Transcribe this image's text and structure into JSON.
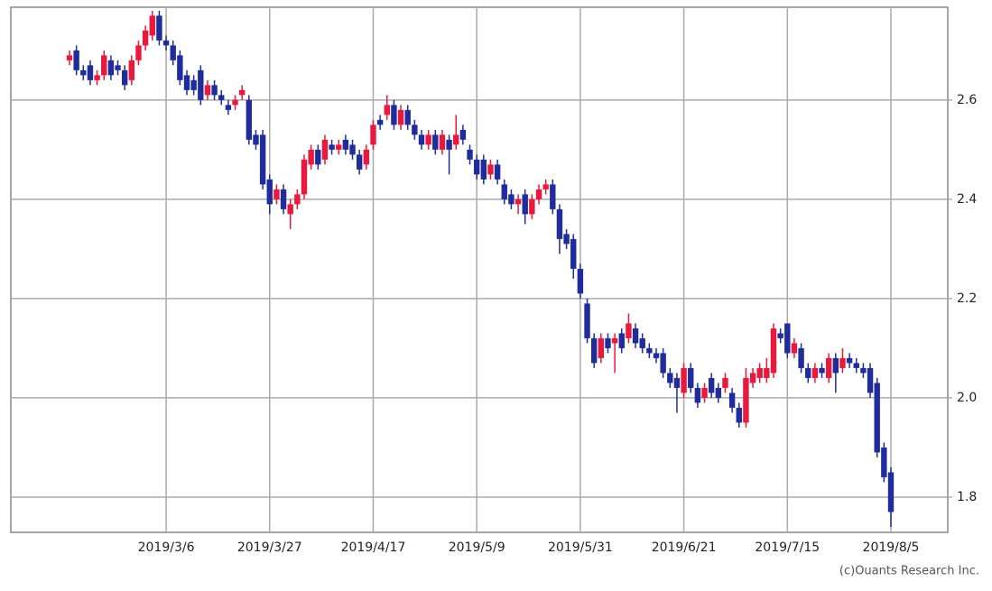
{
  "chart_data": {
    "type": "candlestick",
    "categories": [
      null,
      null,
      null,
      null,
      null,
      null,
      null,
      null,
      null,
      null,
      null,
      null,
      null,
      null,
      "2019/3/6",
      null,
      null,
      null,
      null,
      null,
      null,
      null,
      null,
      null,
      null,
      null,
      null,
      null,
      null,
      "2019/3/27",
      null,
      null,
      null,
      null,
      null,
      null,
      null,
      null,
      null,
      null,
      null,
      null,
      null,
      null,
      "2019/4/17",
      null,
      null,
      null,
      null,
      null,
      null,
      null,
      null,
      null,
      null,
      null,
      null,
      null,
      null,
      "2019/5/9",
      null,
      null,
      null,
      null,
      null,
      null,
      null,
      null,
      null,
      null,
      null,
      null,
      null,
      null,
      "2019/5/31",
      null,
      null,
      null,
      null,
      null,
      null,
      null,
      null,
      null,
      null,
      null,
      null,
      null,
      null,
      "2019/6/21",
      null,
      null,
      null,
      null,
      null,
      null,
      null,
      null,
      null,
      null,
      null,
      null,
      null,
      null,
      "2019/7/15",
      null,
      null,
      null,
      null,
      null,
      null,
      null,
      null,
      null,
      null,
      null,
      null,
      null,
      null,
      "2019/8/5"
    ],
    "open": [
      2.68,
      2.7,
      2.66,
      2.67,
      2.64,
      2.65,
      2.68,
      2.67,
      2.66,
      2.64,
      2.68,
      2.71,
      2.73,
      2.77,
      2.72,
      2.71,
      2.69,
      2.65,
      2.64,
      2.66,
      2.61,
      2.63,
      2.61,
      2.59,
      2.59,
      2.61,
      2.6,
      2.53,
      2.53,
      2.44,
      2.4,
      2.42,
      2.37,
      2.39,
      2.41,
      2.47,
      2.5,
      2.48,
      2.51,
      2.5,
      2.52,
      2.51,
      2.49,
      2.47,
      2.51,
      2.56,
      2.57,
      2.59,
      2.55,
      2.58,
      2.55,
      2.53,
      2.51,
      2.53,
      2.5,
      2.52,
      2.51,
      2.54,
      2.5,
      2.48,
      2.48,
      2.45,
      2.47,
      2.43,
      2.41,
      2.39,
      2.41,
      2.37,
      2.4,
      2.42,
      2.43,
      2.38,
      2.33,
      2.32,
      2.26,
      2.19,
      2.12,
      2.08,
      2.12,
      2.11,
      2.13,
      2.12,
      2.14,
      2.12,
      2.1,
      2.09,
      2.09,
      2.05,
      2.04,
      2.01,
      2.06,
      2.02,
      2.0,
      2.04,
      2.02,
      2.02,
      2.01,
      1.98,
      1.95,
      2.03,
      2.04,
      2.04,
      2.05,
      2.13,
      2.15,
      2.09,
      2.1,
      2.06,
      2.04,
      2.06,
      2.04,
      2.08,
      2.06,
      2.08,
      2.07,
      2.06,
      2.06,
      2.03,
      1.9,
      1.85
    ],
    "high": [
      2.7,
      2.71,
      2.67,
      2.68,
      2.66,
      2.7,
      2.69,
      2.68,
      2.67,
      2.69,
      2.72,
      2.75,
      2.78,
      2.78,
      2.73,
      2.72,
      2.7,
      2.66,
      2.65,
      2.67,
      2.64,
      2.64,
      2.62,
      2.6,
      2.61,
      2.63,
      2.61,
      2.54,
      2.54,
      2.45,
      2.43,
      2.43,
      2.4,
      2.42,
      2.49,
      2.51,
      2.51,
      2.53,
      2.52,
      2.52,
      2.53,
      2.52,
      2.5,
      2.51,
      2.56,
      2.57,
      2.61,
      2.6,
      2.59,
      2.59,
      2.56,
      2.54,
      2.54,
      2.54,
      2.54,
      2.53,
      2.57,
      2.55,
      2.51,
      2.49,
      2.49,
      2.48,
      2.48,
      2.44,
      2.42,
      2.41,
      2.42,
      2.41,
      2.43,
      2.44,
      2.44,
      2.39,
      2.34,
      2.33,
      2.27,
      2.2,
      2.13,
      2.13,
      2.13,
      2.13,
      2.14,
      2.17,
      2.15,
      2.13,
      2.11,
      2.1,
      2.1,
      2.06,
      2.05,
      2.07,
      2.07,
      2.03,
      2.03,
      2.05,
      2.03,
      2.05,
      2.02,
      1.99,
      2.06,
      2.06,
      2.07,
      2.08,
      2.15,
      2.14,
      2.15,
      2.12,
      2.11,
      2.07,
      2.07,
      2.07,
      2.09,
      2.09,
      2.1,
      2.09,
      2.08,
      2.07,
      2.07,
      2.04,
      1.91,
      1.86
    ],
    "low": [
      2.67,
      2.65,
      2.64,
      2.63,
      2.63,
      2.64,
      2.64,
      2.65,
      2.62,
      2.63,
      2.67,
      2.7,
      2.72,
      2.71,
      2.7,
      2.67,
      2.63,
      2.61,
      2.61,
      2.59,
      2.6,
      2.6,
      2.59,
      2.57,
      2.58,
      2.6,
      2.51,
      2.5,
      2.42,
      2.37,
      2.39,
      2.37,
      2.34,
      2.38,
      2.4,
      2.46,
      2.46,
      2.47,
      2.49,
      2.49,
      2.49,
      2.48,
      2.45,
      2.46,
      2.5,
      2.54,
      2.56,
      2.54,
      2.54,
      2.54,
      2.52,
      2.5,
      2.5,
      2.49,
      2.49,
      2.45,
      2.5,
      2.51,
      2.47,
      2.44,
      2.43,
      2.44,
      2.43,
      2.39,
      2.38,
      2.37,
      2.35,
      2.36,
      2.39,
      2.41,
      2.37,
      2.29,
      2.3,
      2.24,
      2.2,
      2.11,
      2.06,
      2.07,
      2.09,
      2.05,
      2.09,
      2.11,
      2.1,
      2.09,
      2.08,
      2.07,
      2.04,
      2.02,
      1.97,
      2.0,
      2.01,
      1.98,
      1.99,
      2.0,
      1.99,
      2.01,
      1.97,
      1.94,
      1.94,
      2.02,
      2.03,
      2.03,
      2.04,
      2.11,
      2.08,
      2.08,
      2.05,
      2.03,
      2.03,
      2.04,
      2.03,
      2.01,
      2.05,
      2.06,
      2.05,
      2.04,
      2.0,
      1.88,
      1.83,
      1.74
    ],
    "close": [
      2.69,
      2.66,
      2.65,
      2.64,
      2.65,
      2.69,
      2.65,
      2.66,
      2.63,
      2.68,
      2.71,
      2.74,
      2.77,
      2.72,
      2.71,
      2.68,
      2.64,
      2.62,
      2.62,
      2.6,
      2.63,
      2.61,
      2.6,
      2.58,
      2.6,
      2.62,
      2.52,
      2.51,
      2.43,
      2.39,
      2.42,
      2.38,
      2.39,
      2.41,
      2.48,
      2.5,
      2.47,
      2.52,
      2.5,
      2.51,
      2.5,
      2.49,
      2.46,
      2.5,
      2.55,
      2.55,
      2.59,
      2.55,
      2.58,
      2.55,
      2.53,
      2.51,
      2.53,
      2.5,
      2.53,
      2.5,
      2.53,
      2.52,
      2.48,
      2.45,
      2.44,
      2.47,
      2.44,
      2.4,
      2.39,
      2.4,
      2.37,
      2.4,
      2.42,
      2.43,
      2.38,
      2.32,
      2.31,
      2.26,
      2.21,
      2.12,
      2.07,
      2.12,
      2.1,
      2.12,
      2.1,
      2.15,
      2.11,
      2.1,
      2.09,
      2.08,
      2.05,
      2.03,
      2.02,
      2.06,
      2.02,
      1.99,
      2.02,
      2.01,
      2.0,
      2.04,
      1.98,
      1.95,
      2.04,
      2.05,
      2.06,
      2.06,
      2.14,
      2.12,
      2.09,
      2.11,
      2.06,
      2.04,
      2.06,
      2.05,
      2.08,
      2.05,
      2.08,
      2.07,
      2.06,
      2.05,
      2.01,
      1.89,
      1.84,
      1.77
    ],
    "up_color": "#e8193c",
    "down_color": "#1f2d9c",
    "ylim": [
      1.729,
      2.787
    ],
    "yticks": [
      1.8,
      {
        "value": 2,
        "label": "2.0"
      },
      2.2,
      2.4,
      2.6
    ],
    "grid": true,
    "source": "(c)Ouants Research Inc."
  }
}
